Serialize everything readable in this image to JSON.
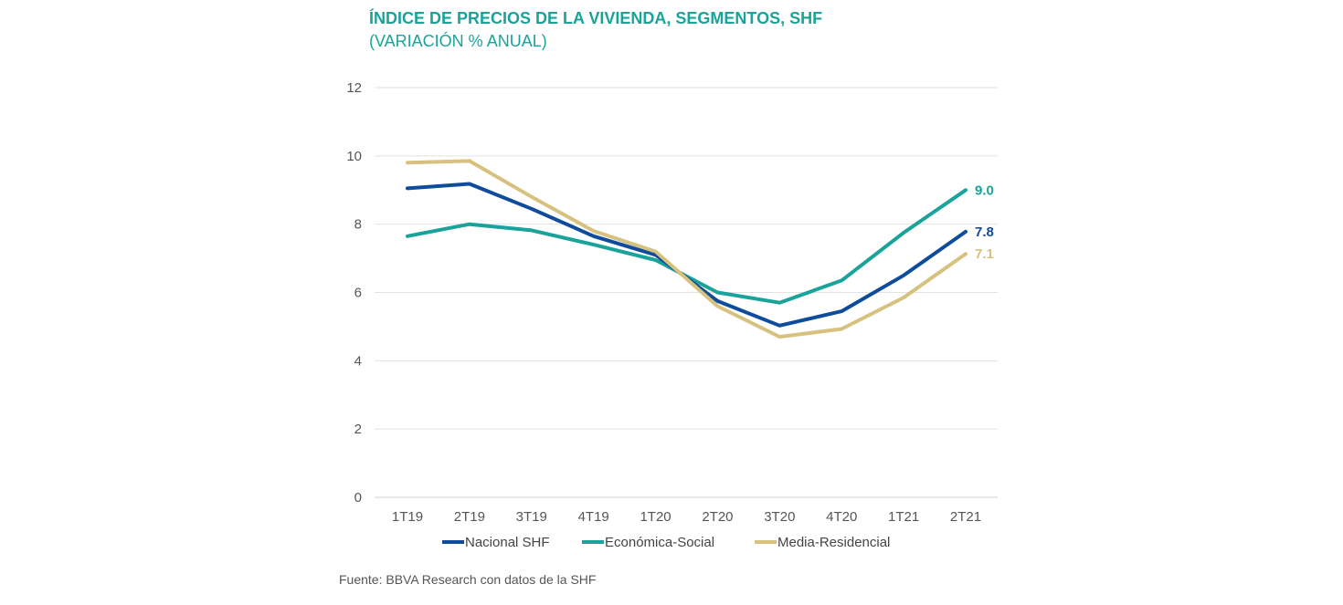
{
  "chart_data": {
    "type": "line",
    "title": "ÍNDICE DE PRECIOS DE LA VIVIENDA, SEGMENTOS, SHF",
    "subtitle": "(VARIACIÓN % ANUAL)",
    "source": "Fuente: BBVA Research con datos de la SHF",
    "categories": [
      "1T19",
      "2T19",
      "3T19",
      "4T19",
      "1T20",
      "2T20",
      "3T20",
      "4T20",
      "1T21",
      "2T21"
    ],
    "ylim": [
      0,
      12
    ],
    "yticks": [
      "0",
      "2",
      "4",
      "6",
      "8",
      "10",
      "12"
    ],
    "grid": true,
    "legend_position": "bottom",
    "series": [
      {
        "name": "Nacional SHF",
        "color": "#0f4c9c",
        "values": [
          9.05,
          9.18,
          8.45,
          7.65,
          7.1,
          5.75,
          5.03,
          5.45,
          6.5,
          7.78
        ],
        "end_label": "7.8"
      },
      {
        "name": "Económica-Social",
        "color": "#1aa39a",
        "values": [
          7.65,
          8.0,
          7.82,
          7.4,
          6.95,
          6.0,
          5.7,
          6.35,
          7.75,
          9.0
        ],
        "end_label": "9.0"
      },
      {
        "name": "Media-Residencial",
        "color": "#d6c17e",
        "values": [
          9.8,
          9.85,
          8.8,
          7.8,
          7.2,
          5.6,
          4.7,
          4.93,
          5.85,
          7.13
        ],
        "end_label": "7.1"
      }
    ]
  }
}
